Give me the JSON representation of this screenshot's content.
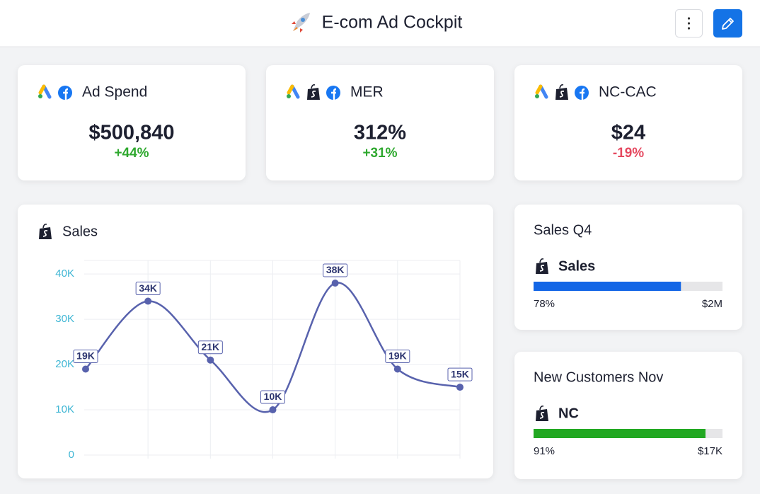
{
  "header": {
    "title": "E-com Ad Cockpit"
  },
  "kpis": [
    {
      "title": "Ad Spend",
      "value": "$500,840",
      "change": "+44%",
      "change_color": "#2ea82e"
    },
    {
      "title": "MER",
      "value": "312%",
      "change": "+31%",
      "change_color": "#2ea82e"
    },
    {
      "title": "NC-CAC",
      "value": "$24",
      "change": "-19%",
      "change_color": "#e5485f"
    }
  ],
  "chart_data": {
    "type": "line",
    "title": "Sales",
    "categories": [
      null,
      null,
      null,
      null,
      null,
      null,
      null
    ],
    "values": [
      19000,
      34000,
      21000,
      10000,
      38000,
      19000,
      15000
    ],
    "value_labels": [
      "19K",
      "34K",
      "21K",
      "10K",
      "38K",
      "19K",
      "15K"
    ],
    "color": "#5862ad",
    "ylim": [
      0,
      43000
    ],
    "yticks": [
      0,
      {
        "value": 10000,
        "label": "10K"
      },
      {
        "value": 20000,
        "label": "20K"
      },
      {
        "value": 30000,
        "label": "30K"
      },
      {
        "value": 40000,
        "label": "40K"
      }
    ],
    "grid": true
  },
  "progress_cards": [
    {
      "title": "Sales Q4",
      "item": "Sales",
      "percent": {
        "value": 78,
        "label": "78%"
      },
      "total": "$2M",
      "color": "#1366e6"
    },
    {
      "title": "New Customers Nov",
      "item": "NC",
      "percent": {
        "value": 91,
        "label": "91%"
      },
      "total": "$17K",
      "color": "#22a822"
    }
  ]
}
